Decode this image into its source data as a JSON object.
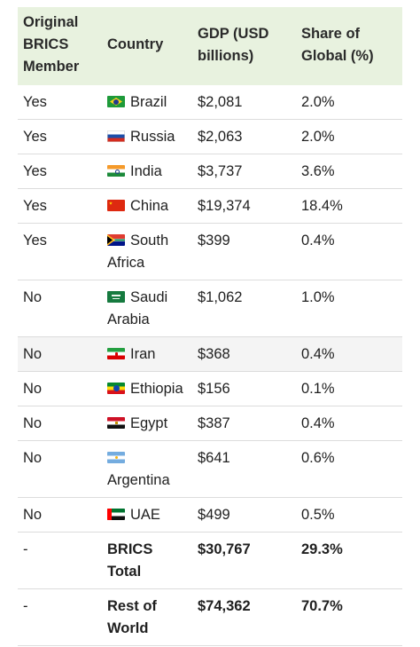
{
  "table": {
    "headers": [
      "Original BRICS Member",
      "Country",
      "GDP (USD billions)",
      "Share of Global (%)"
    ],
    "rows": [
      {
        "member": "Yes",
        "flag": "brazil-flag-icon",
        "country": "Brazil",
        "gdp": "$2,081",
        "share": "2.0%"
      },
      {
        "member": "Yes",
        "flag": "russia-flag-icon",
        "country": "Russia",
        "gdp": "$2,063",
        "share": "2.0%"
      },
      {
        "member": "Yes",
        "flag": "india-flag-icon",
        "country": "India",
        "gdp": "$3,737",
        "share": "3.6%"
      },
      {
        "member": "Yes",
        "flag": "china-flag-icon",
        "country": "China",
        "gdp": "$19,374",
        "share": "18.4%"
      },
      {
        "member": "Yes",
        "flag": "south-africa-flag-icon",
        "country": "South Africa",
        "gdp": "$399",
        "share": "0.4%"
      },
      {
        "member": "No",
        "flag": "saudi-arabia-flag-icon",
        "country": "Saudi Arabia",
        "gdp": "$1,062",
        "share": "1.0%"
      },
      {
        "member": "No",
        "flag": "iran-flag-icon",
        "country": "Iran",
        "gdp": "$368",
        "share": "0.4%"
      },
      {
        "member": "No",
        "flag": "ethiopia-flag-icon",
        "country": "Ethiopia",
        "gdp": "$156",
        "share": "0.1%"
      },
      {
        "member": "No",
        "flag": "egypt-flag-icon",
        "country": "Egypt",
        "gdp": "$387",
        "share": "0.4%"
      },
      {
        "member": "No",
        "flag": "argentina-flag-icon",
        "country": "Argentina",
        "gdp": "$641",
        "share": "0.6%"
      },
      {
        "member": "No",
        "flag": "uae-flag-icon",
        "country": "UAE",
        "gdp": "$499",
        "share": "0.5%"
      },
      {
        "member": "-",
        "flag": "",
        "country": "BRICS Total",
        "gdp": "$30,767",
        "share": "29.3%"
      },
      {
        "member": "-",
        "flag": "",
        "country": "Rest of World",
        "gdp": "$74,362",
        "share": "70.7%"
      }
    ]
  },
  "colors": {
    "header_background": "#e8f2df",
    "row_shade": "#f4f4f4",
    "border": "#dcdcdc"
  }
}
